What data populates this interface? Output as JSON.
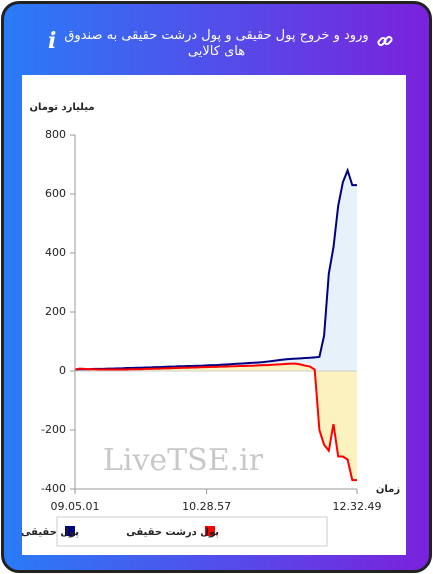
{
  "header": {
    "title": "ورود و خروج پول حقیقی و پول درشت حقیقی به صندوق های کالایی"
  },
  "chart_data": {
    "type": "line",
    "y_label": "میلیارد تومان",
    "x_label": "زمان",
    "watermark": "LiveTSE.ir",
    "categories": [
      "09.05.01",
      null,
      null,
      null,
      null,
      null,
      null,
      null,
      null,
      null,
      null,
      null,
      null,
      null,
      null,
      null,
      null,
      null,
      null,
      null,
      null,
      null,
      null,
      null,
      null,
      null,
      null,
      null,
      "10.28.57",
      null,
      null,
      null,
      null,
      null,
      null,
      null,
      null,
      null,
      null,
      null,
      null,
      null,
      null,
      null,
      null,
      null,
      null,
      null,
      null,
      null,
      null,
      null,
      null,
      null,
      null,
      null,
      null,
      null,
      null,
      null,
      "12.32.49"
    ],
    "series": [
      {
        "name": "پول حقیقی",
        "color": "#000080",
        "fill": "#e6f1fa",
        "values": [
          5,
          6,
          6,
          6,
          7,
          7,
          7,
          8,
          8,
          9,
          9,
          10,
          10,
          11,
          11,
          12,
          12,
          13,
          13,
          14,
          15,
          15,
          16,
          16,
          17,
          17,
          18,
          18,
          19,
          20,
          20,
          21,
          22,
          23,
          24,
          25,
          26,
          27,
          28,
          29,
          30,
          32,
          34,
          36,
          38,
          40,
          41,
          42,
          43,
          44,
          45,
          46,
          48,
          120,
          330,
          420,
          560,
          640,
          680,
          630,
          630
        ]
      },
      {
        "name": "پول درشت حقیقی",
        "color": "#ff0000",
        "fill": "#fcf2c0",
        "values": [
          5,
          8,
          7,
          6,
          6,
          5,
          5,
          5,
          5,
          5,
          5,
          5,
          6,
          6,
          6,
          7,
          7,
          8,
          8,
          9,
          9,
          10,
          10,
          11,
          11,
          12,
          12,
          13,
          13,
          14,
          14,
          15,
          15,
          16,
          16,
          17,
          17,
          18,
          18,
          19,
          20,
          20,
          21,
          22,
          23,
          24,
          25,
          25,
          22,
          18,
          15,
          5,
          -200,
          -250,
          -270,
          -180,
          -290,
          -290,
          -300,
          -370,
          -370
        ]
      }
    ],
    "ylim": [
      -400,
      800
    ],
    "yticks": [
      -400,
      -200,
      0,
      200,
      400,
      600,
      800
    ]
  }
}
